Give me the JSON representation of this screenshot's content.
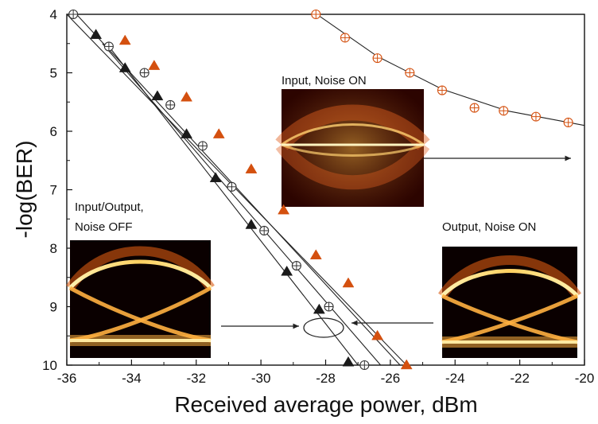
{
  "chart_data": {
    "type": "scatter",
    "xlabel": "Received average power, dBm",
    "ylabel": "-log(BER)",
    "xlim": [
      -36,
      -20
    ],
    "ylim": [
      4,
      10
    ],
    "y_inverted": true,
    "grid": false,
    "xticks": [
      "-36",
      "-34",
      "-32",
      "-30",
      "-28",
      "-26",
      "-24",
      "-22",
      "-20"
    ],
    "yticks": [
      "4",
      "5",
      "6",
      "7",
      "8",
      "9",
      "10"
    ],
    "series": [
      {
        "marker": "triangle",
        "color": "#1a1a1a",
        "x": [
          -35.1,
          -34.2,
          -33.2,
          -32.3,
          -31.4,
          -30.3,
          -29.2,
          -28.2,
          -27.3
        ],
        "y": [
          4.35,
          4.92,
          5.4,
          6.05,
          6.8,
          7.6,
          8.4,
          9.05,
          9.95
        ]
      },
      {
        "marker": "circle-plus",
        "color": "#333333",
        "x": [
          -35.8,
          -34.7,
          -33.6,
          -32.8,
          -31.8,
          -30.9,
          -29.9,
          -28.9,
          -27.9,
          -26.8
        ],
        "y": [
          4.0,
          4.55,
          5.0,
          5.55,
          6.25,
          6.95,
          7.7,
          8.3,
          9.0,
          10.0
        ]
      },
      {
        "marker": "triangle",
        "color": "#d4500f",
        "x": [
          -34.2,
          -33.3,
          -32.3,
          -31.3,
          -30.3,
          -29.3,
          -28.3,
          -27.3,
          -26.4,
          -25.5
        ],
        "y": [
          4.45,
          4.88,
          5.42,
          6.05,
          6.65,
          7.35,
          8.12,
          8.6,
          9.5,
          10.0
        ]
      },
      {
        "marker": "circle-plus",
        "color": "#d4500f",
        "x": [
          -28.3,
          -27.4,
          -26.4,
          -25.4,
          -24.4,
          -23.4,
          -22.5,
          -21.5,
          -20.5
        ],
        "y": [
          4.0,
          4.4,
          4.75,
          5.0,
          5.3,
          5.6,
          5.65,
          5.75,
          5.85
        ]
      }
    ],
    "fits": [
      {
        "color": "#222222",
        "x": [
          -36,
          -25.5
        ],
        "y": [
          4.0,
          10.0
        ]
      },
      {
        "color": "#222222",
        "x": [
          -34.7,
          -27.0
        ],
        "y": [
          4.55,
          10.0
        ]
      },
      {
        "color": "#222222",
        "x": [
          -34.9,
          -26.3
        ],
        "y": [
          4.5,
          10.0
        ]
      },
      {
        "color": "#222222",
        "x": [
          -35.7,
          -25.7
        ],
        "y": [
          4.0,
          10.0
        ]
      },
      {
        "color": "#222222",
        "x": [
          -28.4,
          -26.4,
          -24.4,
          -22.4,
          -20.0
        ],
        "y": [
          3.95,
          4.72,
          5.28,
          5.65,
          5.9
        ]
      }
    ],
    "annotations": [
      {
        "text": "Input, Noise ON"
      },
      {
        "text": "Input/Output,"
      },
      {
        "text": "Noise OFF"
      },
      {
        "text": "Output, Noise ON"
      }
    ]
  }
}
